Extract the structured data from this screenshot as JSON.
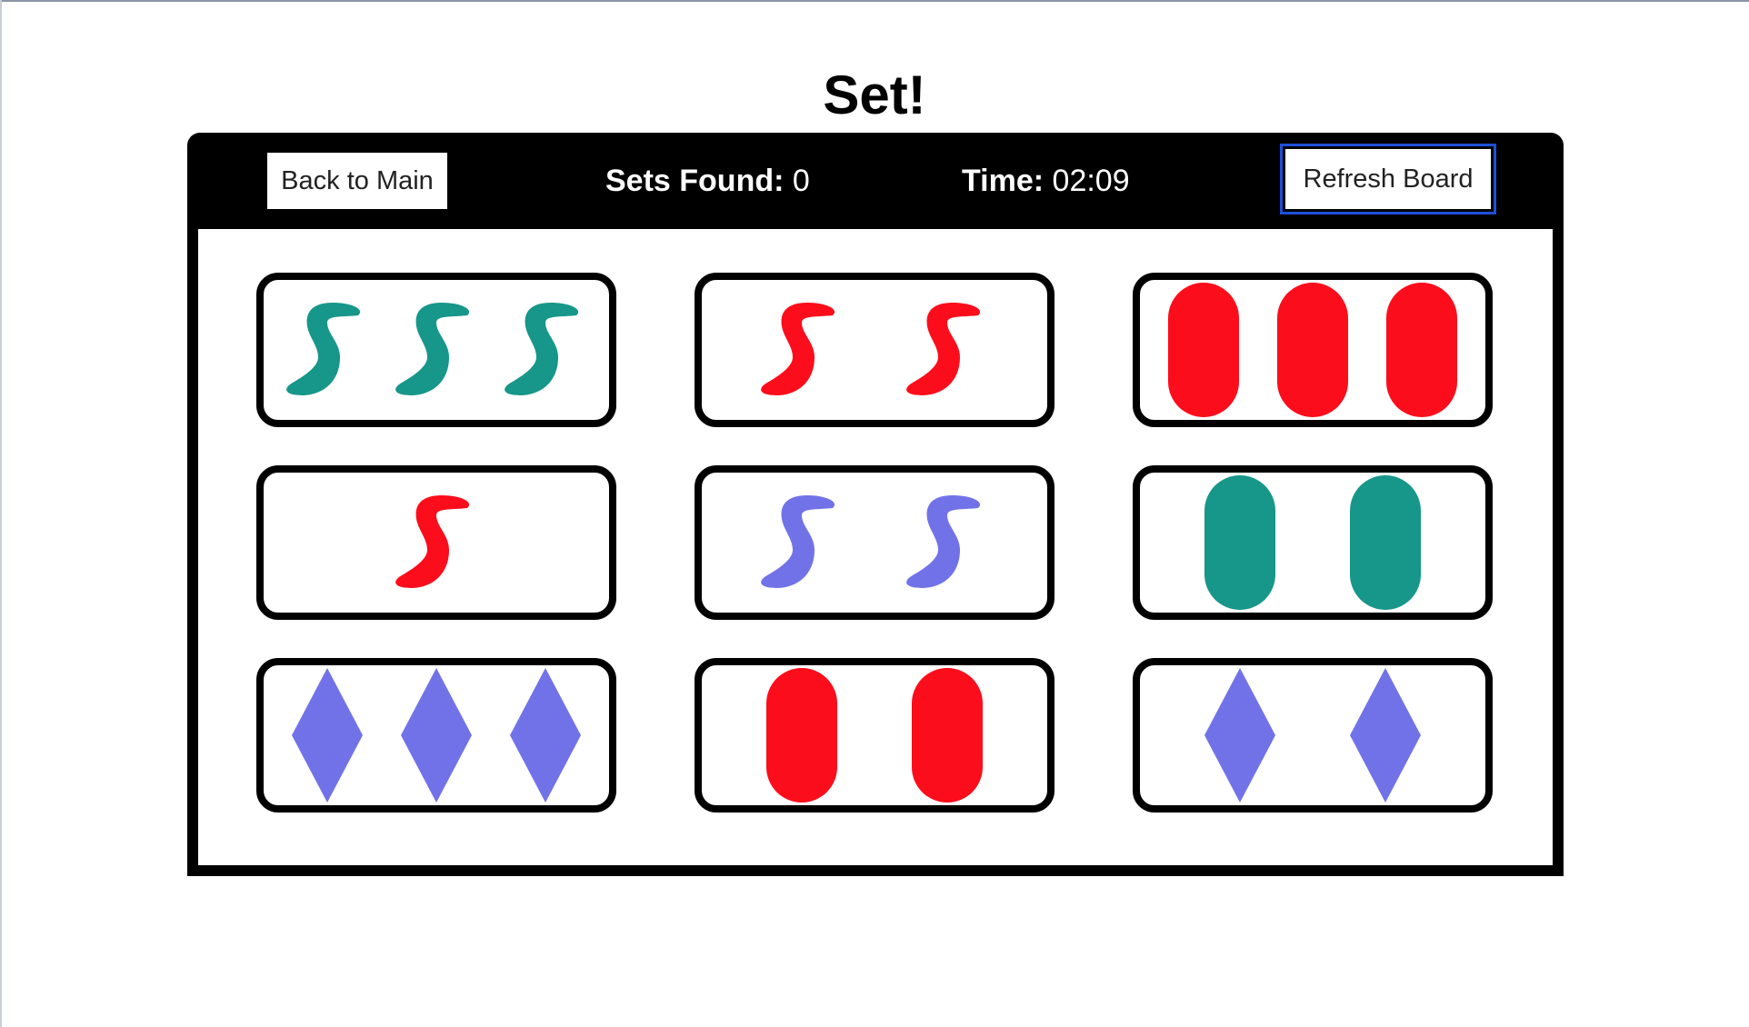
{
  "title": "Set!",
  "header": {
    "back_label": "Back to Main",
    "sets_label": "Sets Found:",
    "sets_value": "0",
    "time_label": "Time:",
    "time_value": "02:09",
    "refresh_label": "Refresh Board"
  },
  "colors": {
    "red": "#fc0d1b",
    "green": "#17968a",
    "purple": "#7272e8"
  },
  "cards": [
    {
      "count": 3,
      "shape": "squiggle",
      "color": "green",
      "fill": "solid"
    },
    {
      "count": 2,
      "shape": "squiggle",
      "color": "red",
      "fill": "solid"
    },
    {
      "count": 3,
      "shape": "oval",
      "color": "red",
      "fill": "solid"
    },
    {
      "count": 1,
      "shape": "squiggle",
      "color": "red",
      "fill": "solid"
    },
    {
      "count": 2,
      "shape": "squiggle",
      "color": "purple",
      "fill": "solid"
    },
    {
      "count": 2,
      "shape": "oval",
      "color": "green",
      "fill": "solid"
    },
    {
      "count": 3,
      "shape": "diamond",
      "color": "purple",
      "fill": "solid"
    },
    {
      "count": 2,
      "shape": "oval",
      "color": "red",
      "fill": "solid"
    },
    {
      "count": 2,
      "shape": "diamond",
      "color": "purple",
      "fill": "solid"
    }
  ]
}
